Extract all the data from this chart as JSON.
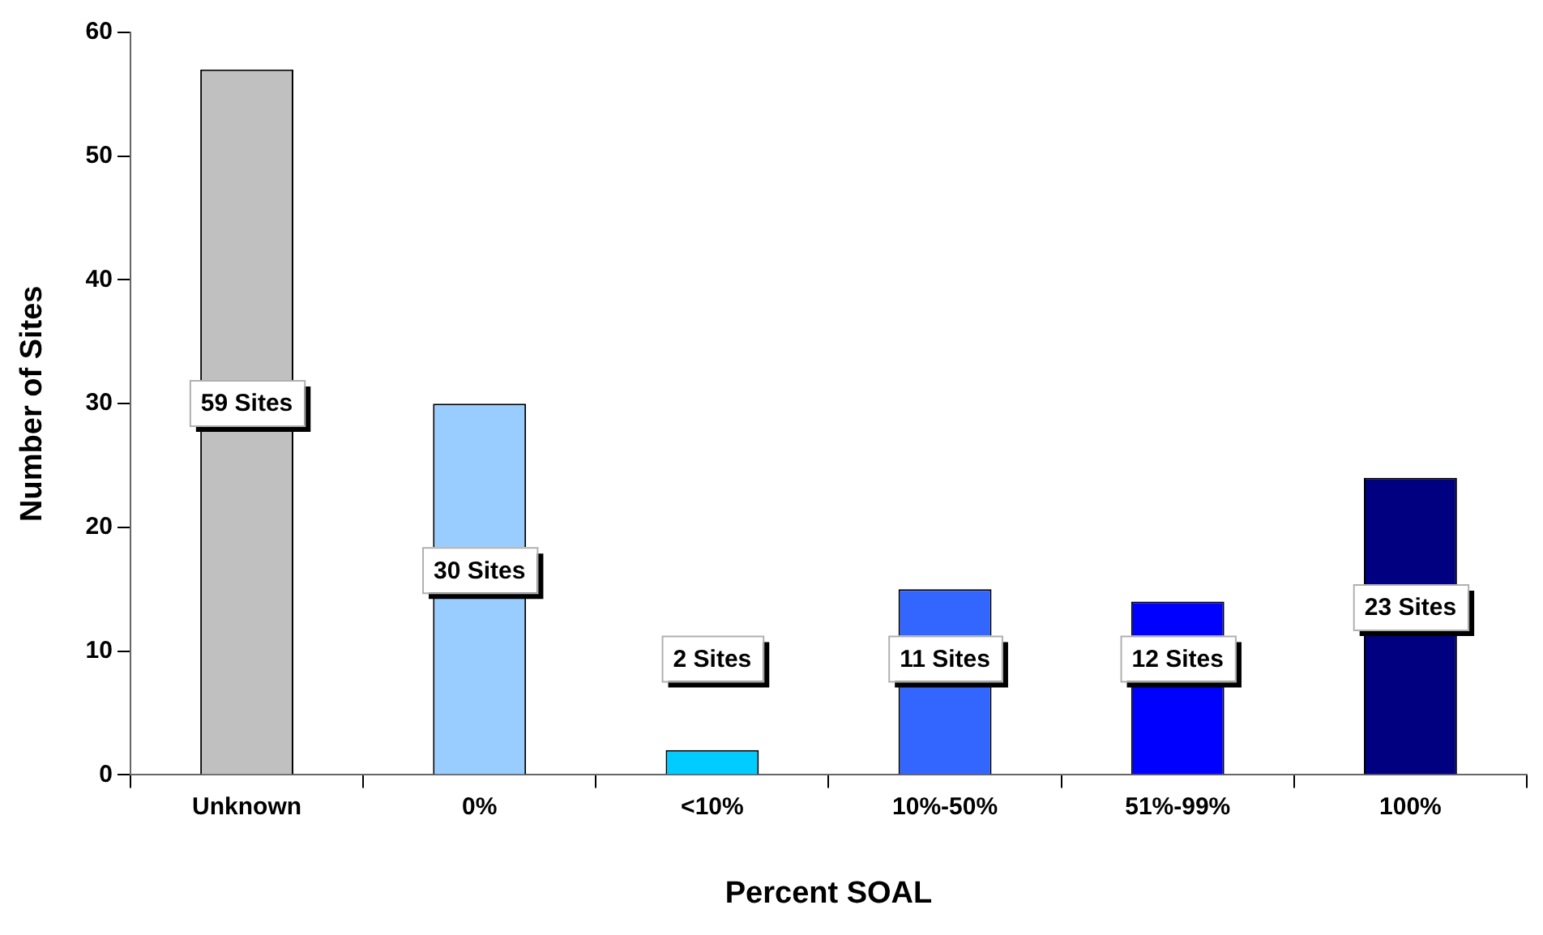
{
  "chart_data": {
    "type": "bar",
    "xlabel": "Percent SOAL",
    "ylabel": "Number of Sites",
    "categories": [
      "Unknown",
      "0%",
      "<10%",
      "10%-50%",
      "51%-99%",
      "100%"
    ],
    "values": [
      57,
      30,
      2,
      15,
      14,
      24
    ],
    "colors": [
      "#c0c0c0",
      "#99ccff",
      "#00ccff",
      "#3366ff",
      "#0000ff",
      "#000080"
    ],
    "annotations": [
      "59 Sites",
      "30 Sites",
      "2 Sites",
      "11 Sites",
      "12 Sites",
      "23 Sites"
    ],
    "ylim": [
      0,
      60
    ],
    "yticks": [
      0,
      10,
      20,
      30,
      40,
      50,
      60
    ],
    "grid": false,
    "legend": false
  }
}
